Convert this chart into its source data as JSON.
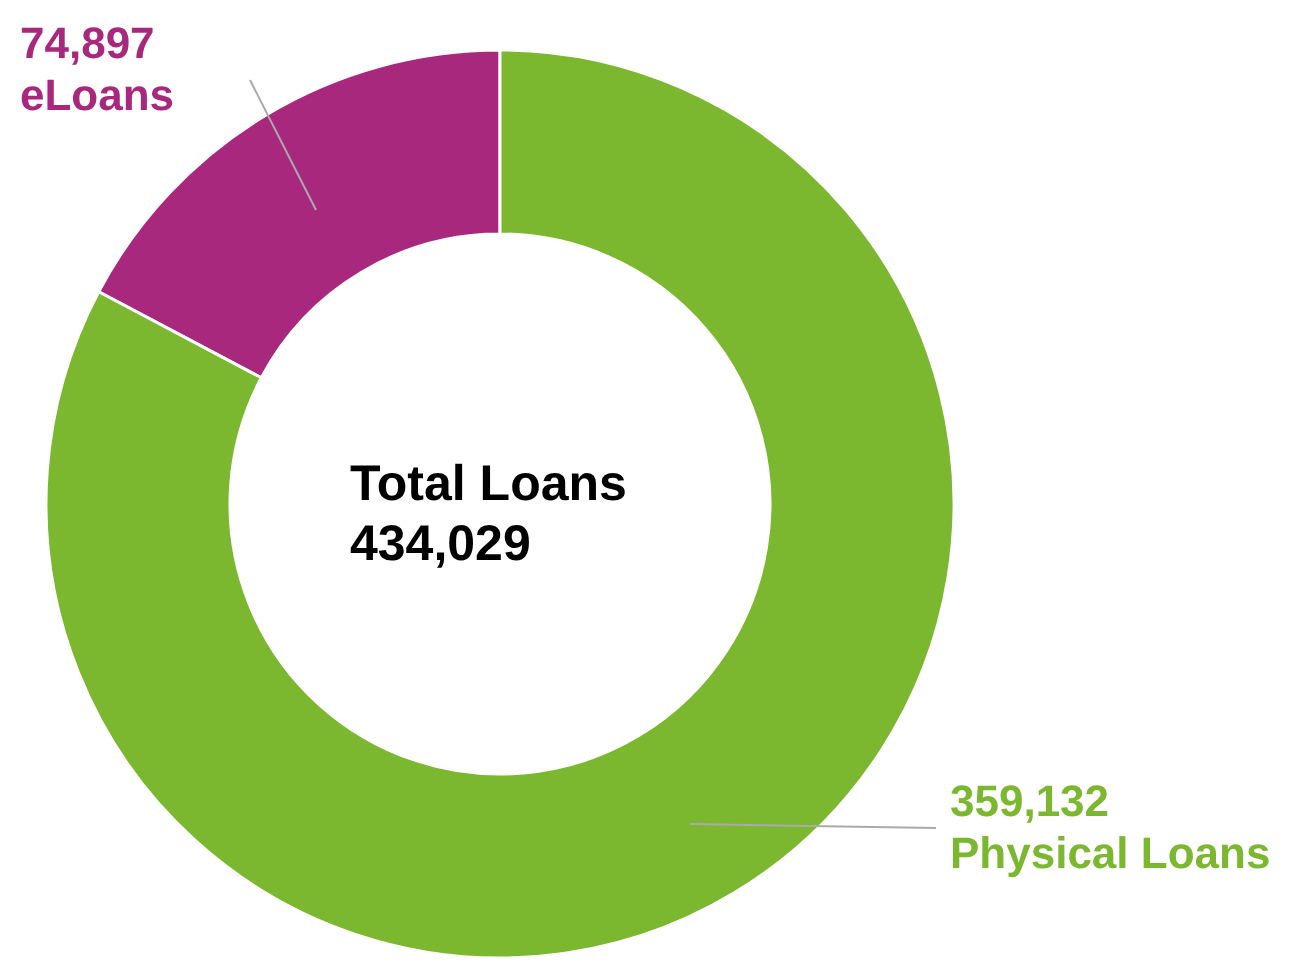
{
  "chart_data": {
    "type": "donut",
    "categories": [
      "eLoans",
      "Physical Loans"
    ],
    "values": [
      74897,
      359132
    ],
    "colors": [
      "#a8287e",
      "#7bb72f"
    ],
    "value_labels": [
      "74,897",
      "359,132"
    ],
    "annotations": [
      "Total Loans",
      "434,029"
    ]
  }
}
